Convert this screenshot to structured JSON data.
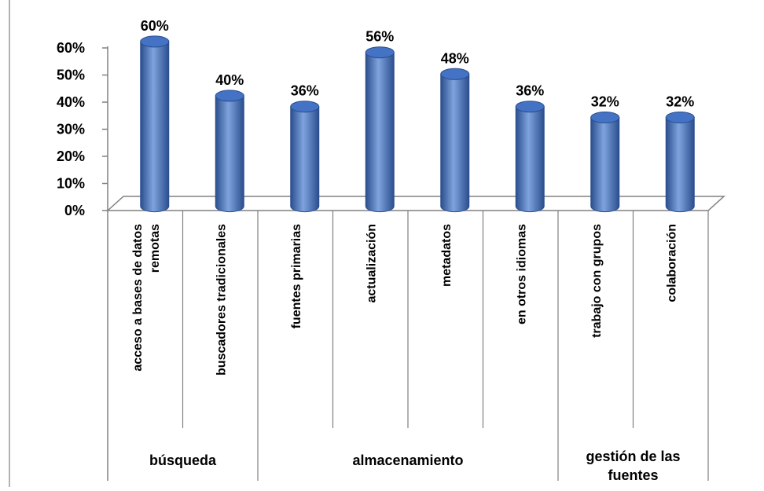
{
  "chart_data": {
    "type": "bar",
    "title": "",
    "xlabel": "",
    "ylabel": "",
    "ylim": [
      0,
      60
    ],
    "y_ticks": [
      "0%",
      "10%",
      "20%",
      "30%",
      "40%",
      "50%",
      "60%"
    ],
    "y_tick_values": [
      0,
      10,
      20,
      30,
      40,
      50,
      60
    ],
    "categories": [
      [
        "acceso a bases de datos",
        "remotas"
      ],
      [
        "buscadores tradicionales"
      ],
      [
        "fuentes primarias"
      ],
      [
        "actualización"
      ],
      [
        "metadatos"
      ],
      [
        "en otros idiomas"
      ],
      [
        "trabajo con grupos"
      ],
      [
        "colaboración"
      ]
    ],
    "values": [
      60,
      40,
      36,
      56,
      48,
      36,
      32,
      32
    ],
    "data_labels": [
      "60%",
      "40%",
      "36%",
      "56%",
      "48%",
      "36%",
      "32%",
      "32%"
    ],
    "groups": [
      {
        "label": [
          "búsqueda"
        ],
        "categories": [
          0,
          1
        ]
      },
      {
        "label": [
          "almacenamiento"
        ],
        "categories": [
          2,
          3,
          4,
          5
        ]
      },
      {
        "label": [
          "gestión de las",
          "fuentes"
        ],
        "categories": [
          6,
          7
        ]
      }
    ],
    "grid": false,
    "legend": "none",
    "colors": {
      "bar": "#4472C4",
      "bar_dark": "#2B4F8E",
      "bar_light": "#7FA3DD",
      "axis": "#808080"
    }
  }
}
